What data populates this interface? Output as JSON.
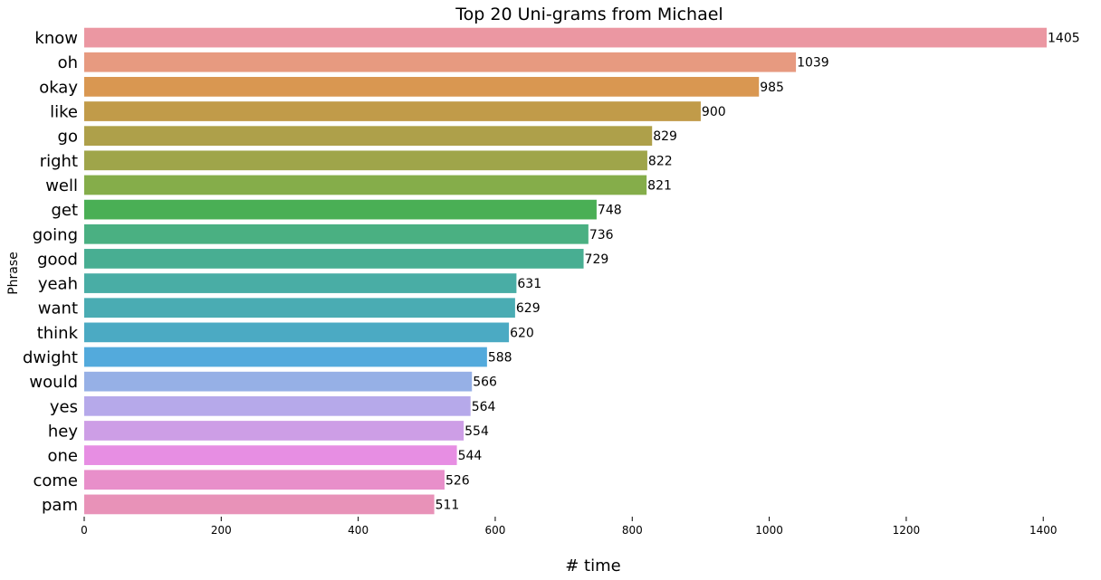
{
  "chart_data": {
    "type": "bar",
    "orientation": "horizontal",
    "title": "Top 20 Uni-grams from Michael",
    "xlabel": "# time",
    "ylabel": "Phrase",
    "categories": [
      "know",
      "oh",
      "okay",
      "like",
      "go",
      "right",
      "well",
      "get",
      "going",
      "good",
      "yeah",
      "want",
      "think",
      "dwight",
      "would",
      "yes",
      "hey",
      "one",
      "come",
      "pam"
    ],
    "values": [
      1405,
      1039,
      985,
      900,
      829,
      822,
      821,
      748,
      736,
      729,
      631,
      629,
      620,
      588,
      566,
      564,
      554,
      544,
      526,
      511
    ],
    "xlim": [
      0,
      1405
    ],
    "xticks": [
      0,
      200,
      400,
      600,
      800,
      1000,
      1200,
      1400
    ],
    "grid": false,
    "colors": [
      "#eb97a2",
      "#e79a80",
      "#d99751",
      "#c19b49",
      "#aea04a",
      "#9fa54a",
      "#85ad4a",
      "#4aaf55",
      "#4ab082",
      "#48ae92",
      "#49ada5",
      "#4aacb3",
      "#4baac3",
      "#53aadc",
      "#96b0e6",
      "#b6a9ea",
      "#cd9ee6",
      "#e78ee3",
      "#e88fca",
      "#e892b8"
    ]
  }
}
